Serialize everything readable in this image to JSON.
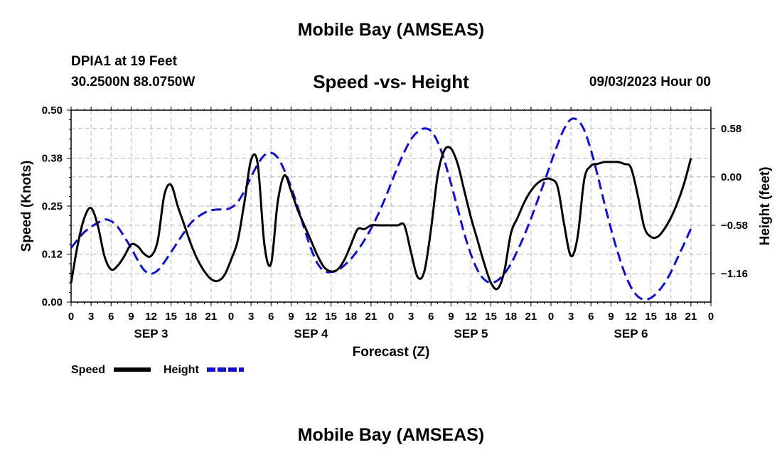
{
  "header": {
    "title": "Mobile Bay (AMSEAS)",
    "station": "DPIA1 at 19 Feet",
    "coords": "30.2500N  88.0750W",
    "subtitle": "Speed -vs- Height",
    "datetime": "09/03/2023 Hour 00"
  },
  "footer": {
    "title": "Mobile Bay (AMSEAS)"
  },
  "chart_data": {
    "type": "line",
    "title": "Speed -vs- Height",
    "xlabel": "Forecast (Z)",
    "ylabel": "Speed (Knots)",
    "y2label": "Height (feet)",
    "xlim": [
      0,
      96
    ],
    "ylim": [
      0,
      0.5
    ],
    "y2lim": [
      -1.5,
      0.8
    ],
    "x_ticks": [
      0,
      3,
      6,
      9,
      12,
      15,
      18,
      21,
      24,
      27,
      30,
      33,
      36,
      39,
      42,
      45,
      48,
      51,
      54,
      57,
      60,
      63,
      66,
      69,
      72,
      75,
      78,
      81,
      84,
      87,
      90,
      93,
      96
    ],
    "x_tick_labels": [
      "0",
      "3",
      "6",
      "9",
      "12",
      "15",
      "18",
      "21",
      "0",
      "3",
      "6",
      "9",
      "12",
      "15",
      "18",
      "21",
      "0",
      "3",
      "6",
      "9",
      "12",
      "15",
      "18",
      "21",
      "0",
      "3",
      "6",
      "9",
      "12",
      "15",
      "18",
      "21",
      "0"
    ],
    "day_labels": [
      {
        "x": 12,
        "label": "SEP 3"
      },
      {
        "x": 36,
        "label": "SEP 4"
      },
      {
        "x": 60,
        "label": "SEP 5"
      },
      {
        "x": 84,
        "label": "SEP 6"
      }
    ],
    "y_ticks": [
      0.0,
      0.125,
      0.25,
      0.375,
      0.5
    ],
    "y_tick_labels": [
      "0.00",
      "0.12",
      "0.25",
      "0.38",
      "0.50"
    ],
    "y2_ticks": [
      -1.16,
      -0.58,
      0.0,
      0.58
    ],
    "y2_tick_labels": [
      "−1.16",
      "−0.58",
      "0.00",
      "0.58"
    ],
    "grid": true,
    "legend_position": "bottom-left",
    "series": [
      {
        "name": "Speed",
        "axis": "left",
        "color": "#000000",
        "style": "solid",
        "points": [
          [
            0,
            0.05
          ],
          [
            1,
            0.15
          ],
          [
            2,
            0.22
          ],
          [
            3,
            0.245
          ],
          [
            4,
            0.2
          ],
          [
            5,
            0.12
          ],
          [
            6,
            0.085
          ],
          [
            7,
            0.095
          ],
          [
            8,
            0.12
          ],
          [
            9,
            0.15
          ],
          [
            10,
            0.145
          ],
          [
            11,
            0.125
          ],
          [
            12,
            0.12
          ],
          [
            13,
            0.16
          ],
          [
            14,
            0.28
          ],
          [
            15,
            0.305
          ],
          [
            16,
            0.25
          ],
          [
            17,
            0.2
          ],
          [
            18,
            0.15
          ],
          [
            19,
            0.11
          ],
          [
            20,
            0.08
          ],
          [
            21,
            0.06
          ],
          [
            22,
            0.055
          ],
          [
            23,
            0.07
          ],
          [
            24,
            0.11
          ],
          [
            25,
            0.16
          ],
          [
            26,
            0.26
          ],
          [
            27,
            0.37
          ],
          [
            28,
            0.36
          ],
          [
            29,
            0.15
          ],
          [
            30,
            0.1
          ],
          [
            31,
            0.26
          ],
          [
            32,
            0.33
          ],
          [
            33,
            0.29
          ],
          [
            34,
            0.24
          ],
          [
            35,
            0.2
          ],
          [
            36,
            0.16
          ],
          [
            37,
            0.12
          ],
          [
            38,
            0.09
          ],
          [
            39,
            0.08
          ],
          [
            40,
            0.085
          ],
          [
            41,
            0.11
          ],
          [
            42,
            0.15
          ],
          [
            43,
            0.19
          ],
          [
            44,
            0.19
          ],
          [
            45,
            0.2
          ],
          [
            46,
            0.2
          ],
          [
            47,
            0.2
          ],
          [
            48,
            0.2
          ],
          [
            49,
            0.2
          ],
          [
            50,
            0.2
          ],
          [
            51,
            0.13
          ],
          [
            52,
            0.065
          ],
          [
            53,
            0.08
          ],
          [
            54,
            0.19
          ],
          [
            55,
            0.33
          ],
          [
            56,
            0.395
          ],
          [
            57,
            0.4
          ],
          [
            58,
            0.36
          ],
          [
            59,
            0.29
          ],
          [
            60,
            0.22
          ],
          [
            61,
            0.16
          ],
          [
            62,
            0.1
          ],
          [
            63,
            0.05
          ],
          [
            64,
            0.035
          ],
          [
            65,
            0.08
          ],
          [
            66,
            0.18
          ],
          [
            67,
            0.22
          ],
          [
            68,
            0.26
          ],
          [
            69,
            0.29
          ],
          [
            70,
            0.31
          ],
          [
            71,
            0.32
          ],
          [
            72,
            0.32
          ],
          [
            73,
            0.3
          ],
          [
            74,
            0.2
          ],
          [
            75,
            0.12
          ],
          [
            76,
            0.17
          ],
          [
            77,
            0.32
          ],
          [
            78,
            0.355
          ],
          [
            79,
            0.36
          ],
          [
            80,
            0.365
          ],
          [
            81,
            0.365
          ],
          [
            82,
            0.365
          ],
          [
            83,
            0.36
          ],
          [
            84,
            0.35
          ],
          [
            85,
            0.28
          ],
          [
            86,
            0.195
          ],
          [
            87,
            0.17
          ],
          [
            88,
            0.17
          ],
          [
            89,
            0.19
          ],
          [
            90,
            0.22
          ],
          [
            91,
            0.26
          ],
          [
            92,
            0.31
          ],
          [
            93,
            0.375
          ]
        ]
      },
      {
        "name": "Height",
        "axis": "right",
        "color": "#1010cc",
        "style": "dashed",
        "points": [
          [
            0,
            -0.85
          ],
          [
            1,
            -0.75
          ],
          [
            2,
            -0.66
          ],
          [
            3,
            -0.6
          ],
          [
            4,
            -0.55
          ],
          [
            5,
            -0.51
          ],
          [
            6,
            -0.53
          ],
          [
            7,
            -0.6
          ],
          [
            8,
            -0.72
          ],
          [
            9,
            -0.85
          ],
          [
            10,
            -1.0
          ],
          [
            11,
            -1.12
          ],
          [
            12,
            -1.16
          ],
          [
            13,
            -1.12
          ],
          [
            14,
            -1.02
          ],
          [
            15,
            -0.9
          ],
          [
            16,
            -0.78
          ],
          [
            17,
            -0.66
          ],
          [
            18,
            -0.55
          ],
          [
            19,
            -0.48
          ],
          [
            20,
            -0.43
          ],
          [
            21,
            -0.4
          ],
          [
            22,
            -0.39
          ],
          [
            23,
            -0.39
          ],
          [
            24,
            -0.37
          ],
          [
            25,
            -0.3
          ],
          [
            26,
            -0.17
          ],
          [
            27,
            0.0
          ],
          [
            28,
            0.15
          ],
          [
            29,
            0.26
          ],
          [
            30,
            0.29
          ],
          [
            31,
            0.23
          ],
          [
            32,
            0.08
          ],
          [
            33,
            -0.12
          ],
          [
            34,
            -0.36
          ],
          [
            35,
            -0.62
          ],
          [
            36,
            -0.86
          ],
          [
            37,
            -1.04
          ],
          [
            38,
            -1.13
          ],
          [
            39,
            -1.14
          ],
          [
            40,
            -1.12
          ],
          [
            41,
            -1.06
          ],
          [
            42,
            -0.98
          ],
          [
            43,
            -0.88
          ],
          [
            44,
            -0.76
          ],
          [
            45,
            -0.62
          ],
          [
            46,
            -0.46
          ],
          [
            47,
            -0.28
          ],
          [
            48,
            -0.08
          ],
          [
            49,
            0.12
          ],
          [
            50,
            0.3
          ],
          [
            51,
            0.45
          ],
          [
            52,
            0.54
          ],
          [
            53,
            0.58
          ],
          [
            54,
            0.55
          ],
          [
            55,
            0.42
          ],
          [
            56,
            0.2
          ],
          [
            57,
            -0.08
          ],
          [
            58,
            -0.38
          ],
          [
            59,
            -0.68
          ],
          [
            60,
            -0.93
          ],
          [
            61,
            -1.12
          ],
          [
            62,
            -1.23
          ],
          [
            63,
            -1.27
          ],
          [
            64,
            -1.24
          ],
          [
            65,
            -1.16
          ],
          [
            66,
            -1.04
          ],
          [
            67,
            -0.88
          ],
          [
            68,
            -0.7
          ],
          [
            69,
            -0.5
          ],
          [
            70,
            -0.28
          ],
          [
            71,
            -0.06
          ],
          [
            72,
            0.17
          ],
          [
            73,
            0.39
          ],
          [
            74,
            0.58
          ],
          [
            75,
            0.69
          ],
          [
            76,
            0.68
          ],
          [
            77,
            0.56
          ],
          [
            78,
            0.32
          ],
          [
            79,
            0.02
          ],
          [
            80,
            -0.31
          ],
          [
            81,
            -0.62
          ],
          [
            82,
            -0.9
          ],
          [
            83,
            -1.14
          ],
          [
            84,
            -1.32
          ],
          [
            85,
            -1.43
          ],
          [
            86,
            -1.47
          ],
          [
            87,
            -1.45
          ],
          [
            88,
            -1.38
          ],
          [
            89,
            -1.28
          ],
          [
            90,
            -1.14
          ],
          [
            91,
            -0.97
          ],
          [
            92,
            -0.8
          ],
          [
            93,
            -0.62
          ]
        ]
      }
    ]
  }
}
